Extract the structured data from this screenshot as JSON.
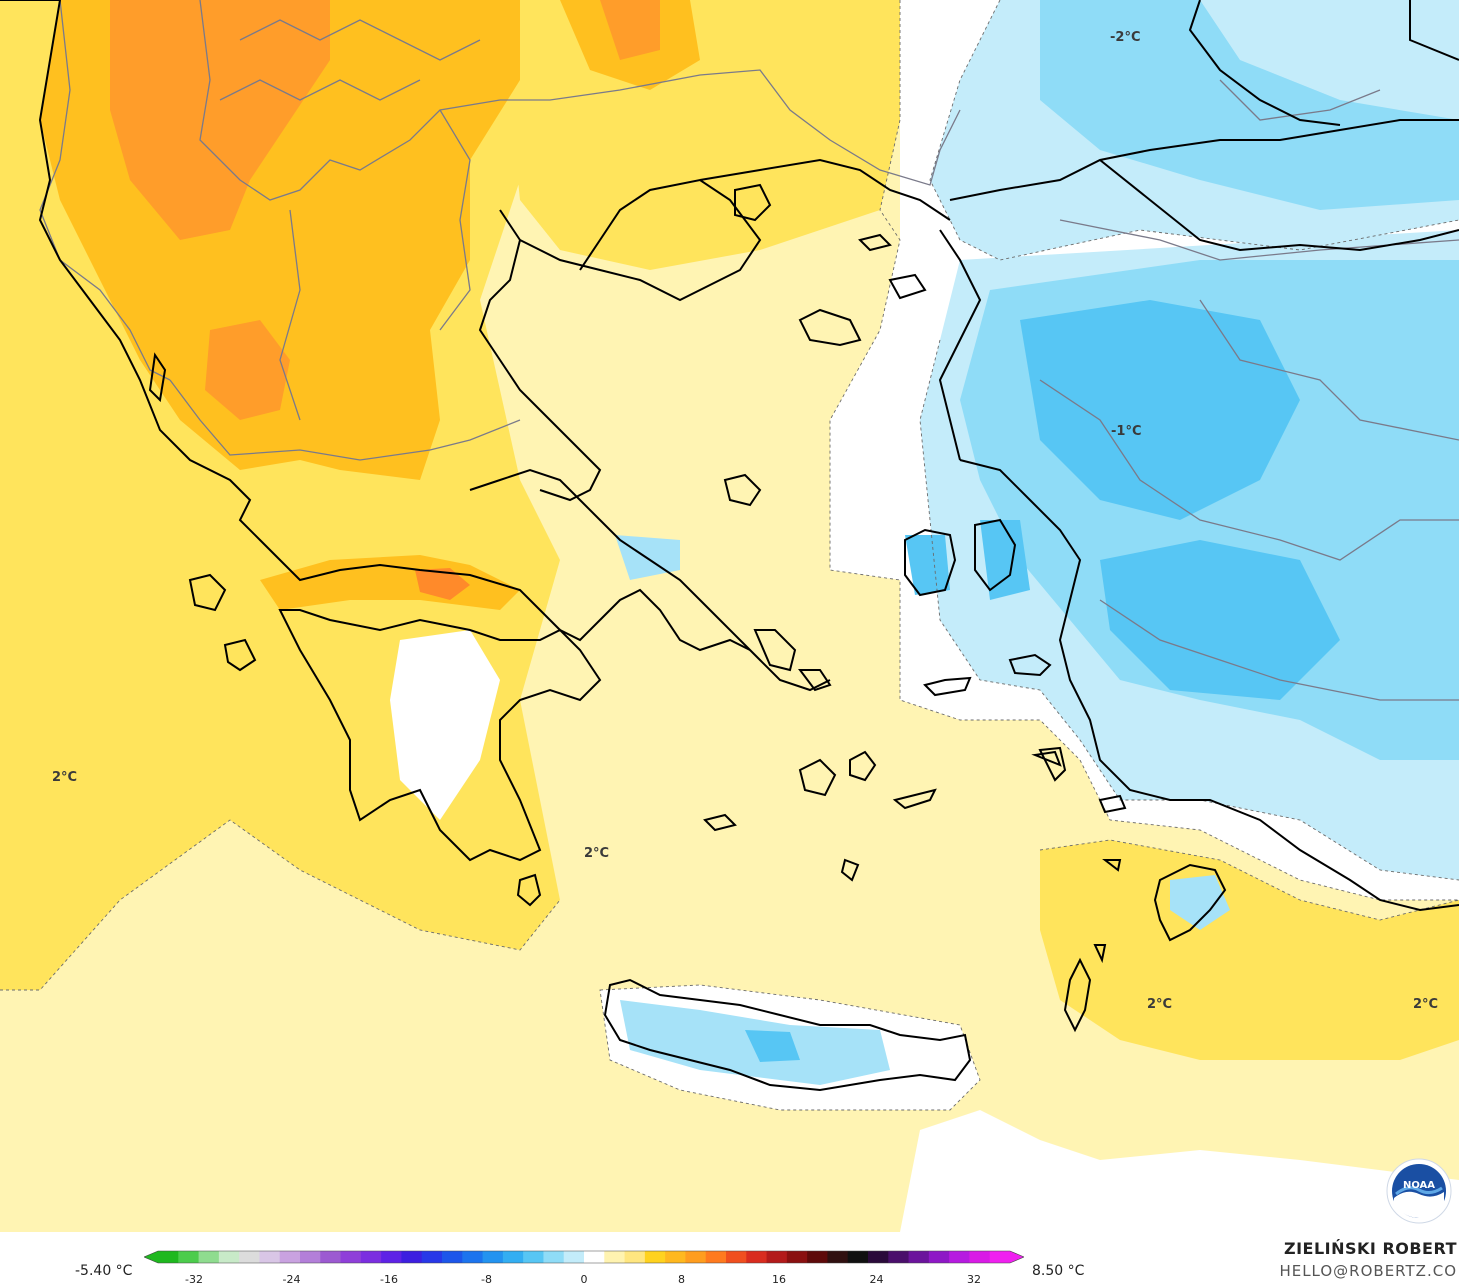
{
  "map": {
    "contour_labels": [
      {
        "id": "north-east",
        "text": "-2°C"
      },
      {
        "id": "anatolia",
        "text": "-1°C"
      },
      {
        "id": "ionian",
        "text": "2°C"
      },
      {
        "id": "aegean",
        "text": "2°C"
      },
      {
        "id": "dodecanese",
        "text": "2°C"
      },
      {
        "id": "east-med",
        "text": "2°C"
      }
    ]
  },
  "legend": {
    "min_label": "-5.40 °C",
    "max_label": "8.50 °C",
    "ticks": [
      "-32",
      "-24",
      "-16",
      "-8",
      "0",
      "8",
      "16",
      "24",
      "32"
    ],
    "colors": [
      "#1fb81f",
      "#4ccc4c",
      "#8fdc8f",
      "#c8eac8",
      "#dcdcdc",
      "#d9c6e6",
      "#c9a2e0",
      "#b37fd9",
      "#9c5ad1",
      "#8f3fd9",
      "#7b2ee0",
      "#5e22e6",
      "#3d1fe0",
      "#2838e8",
      "#1d56ea",
      "#1c74ee",
      "#2393f0",
      "#33aef2",
      "#57c6f4",
      "#8fdcf7",
      "#c3ecfa",
      "#ffffff",
      "#fff3b0",
      "#ffe680",
      "#ffd21f",
      "#ffb81f",
      "#ff9d1f",
      "#ff7a1f",
      "#f04f1f",
      "#d92c1f",
      "#b31a1a",
      "#8a1010",
      "#5e0a0a",
      "#301010",
      "#101010",
      "#2a0a3a",
      "#4a0f6b",
      "#6b149c",
      "#8e18c6",
      "#b61ae0",
      "#d91ae6",
      "#f020f0"
    ]
  },
  "credit": {
    "name": "ZIELIŃSKI ROBERT",
    "email": "HELLO@ROBERTZ.CO"
  },
  "logo": {
    "icon": "noaa-logo-icon",
    "text": "NOAA"
  }
}
